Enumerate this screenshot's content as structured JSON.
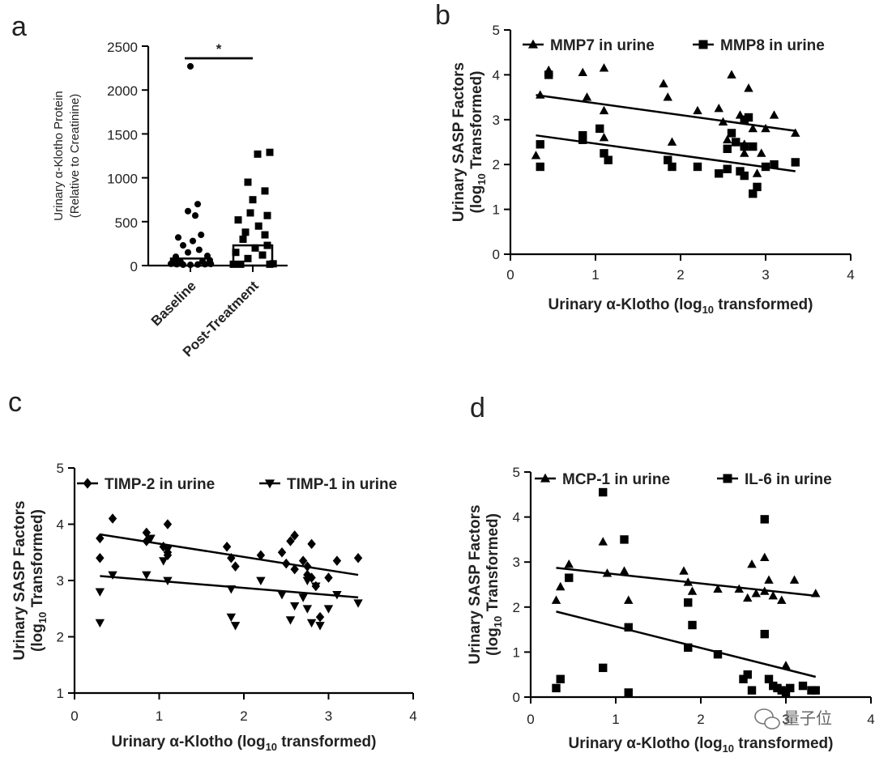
{
  "chart_data": [
    {
      "panel": "a",
      "type": "scatter",
      "ylabel_lines": [
        "Urinary α-Klotho Protein",
        "(Relative to Creatinine)"
      ],
      "ylim": [
        0,
        2500
      ],
      "yticks": [
        0,
        500,
        1000,
        1500,
        2000,
        2500
      ],
      "categories": [
        "Baseline",
        "Post-Treatment"
      ],
      "significance": "*",
      "series": [
        {
          "name": "Baseline",
          "marker": "circle",
          "points": [
            [
              -0.4,
              20
            ],
            [
              -0.28,
              15
            ],
            [
              -0.15,
              10
            ],
            [
              0.0,
              8
            ],
            [
              0.15,
              12
            ],
            [
              0.3,
              15
            ],
            [
              0.42,
              18
            ],
            [
              -0.35,
              45
            ],
            [
              -0.2,
              40
            ],
            [
              0.25,
              50
            ],
            [
              -0.3,
              100
            ],
            [
              0.35,
              110
            ],
            [
              -0.05,
              150
            ],
            [
              0.18,
              180
            ],
            [
              -0.15,
              230
            ],
            [
              0.05,
              280
            ],
            [
              -0.25,
              320
            ],
            [
              0.22,
              350
            ],
            [
              0.1,
              570
            ],
            [
              -0.05,
              620
            ],
            [
              0.15,
              700
            ],
            [
              -0.3,
              80
            ],
            [
              0.4,
              60
            ],
            [
              0.0,
              2270
            ]
          ]
        },
        {
          "name": "Post-Treatment",
          "marker": "square",
          "points": [
            [
              -0.4,
              15
            ],
            [
              -0.25,
              15
            ],
            [
              0.35,
              15
            ],
            [
              0.42,
              20
            ],
            [
              -0.1,
              80
            ],
            [
              0.2,
              120
            ],
            [
              -0.35,
              150
            ],
            [
              0.05,
              200
            ],
            [
              0.3,
              230
            ],
            [
              -0.2,
              300
            ],
            [
              0.25,
              350
            ],
            [
              -0.15,
              380
            ],
            [
              0.12,
              450
            ],
            [
              -0.3,
              520
            ],
            [
              0.3,
              570
            ],
            [
              -0.05,
              600
            ],
            [
              0.0,
              750
            ],
            [
              0.25,
              850
            ],
            [
              -0.1,
              950
            ],
            [
              0.1,
              1270
            ],
            [
              0.35,
              1290
            ]
          ]
        }
      ],
      "bars": [
        {
          "category": "Baseline",
          "value": 80
        },
        {
          "category": "Post-Treatment",
          "value": 230
        }
      ]
    },
    {
      "panel": "b",
      "type": "scatter",
      "xlabel": "Urinary α-Klotho (log",
      "xlabel_sub": "10",
      "xlabel_tail": " transformed)",
      "ylabel_line1": "Urinary SASP Factors",
      "ylabel_line2": "(log",
      "ylabel_line2_sub": "10",
      "ylabel_line2_tail": " Transformed)",
      "xlim": [
        0,
        4
      ],
      "ylim": [
        0,
        5
      ],
      "xticks": [
        0,
        1,
        2,
        3,
        4
      ],
      "yticks": [
        0,
        1,
        2,
        3,
        4,
        5
      ],
      "series": [
        {
          "name": "MMP7 in urine",
          "marker": "triangle",
          "points": [
            [
              0.3,
              2.2
            ],
            [
              0.35,
              3.55
            ],
            [
              0.45,
              4.05
            ],
            [
              0.45,
              4.1
            ],
            [
              0.85,
              4.05
            ],
            [
              0.9,
              3.5
            ],
            [
              1.1,
              4.15
            ],
            [
              1.1,
              3.2
            ],
            [
              1.1,
              2.6
            ],
            [
              1.8,
              3.8
            ],
            [
              1.85,
              3.5
            ],
            [
              1.9,
              2.5
            ],
            [
              2.2,
              3.2
            ],
            [
              2.45,
              3.25
            ],
            [
              2.5,
              2.95
            ],
            [
              2.6,
              4.0
            ],
            [
              2.55,
              2.55
            ],
            [
              2.7,
              3.1
            ],
            [
              2.75,
              2.45
            ],
            [
              2.75,
              2.25
            ],
            [
              2.8,
              3.7
            ],
            [
              2.85,
              2.8
            ],
            [
              2.9,
              1.8
            ],
            [
              2.95,
              2.25
            ],
            [
              3.0,
              2.8
            ],
            [
              3.1,
              3.1
            ],
            [
              3.35,
              2.7
            ]
          ]
        },
        {
          "name": "MMP8 in urine",
          "marker": "square",
          "points": [
            [
              0.35,
              1.95
            ],
            [
              0.35,
              2.45
            ],
            [
              0.45,
              4.0
            ],
            [
              0.85,
              2.65
            ],
            [
              0.85,
              2.55
            ],
            [
              1.05,
              2.8
            ],
            [
              1.1,
              2.25
            ],
            [
              1.15,
              2.1
            ],
            [
              1.85,
              2.1
            ],
            [
              1.9,
              1.95
            ],
            [
              2.2,
              1.95
            ],
            [
              2.45,
              1.8
            ],
            [
              2.55,
              1.9
            ],
            [
              2.55,
              2.35
            ],
            [
              2.6,
              2.7
            ],
            [
              2.65,
              2.5
            ],
            [
              2.7,
              1.85
            ],
            [
              2.75,
              1.75
            ],
            [
              2.75,
              3.0
            ],
            [
              2.75,
              2.4
            ],
            [
              2.8,
              3.05
            ],
            [
              2.85,
              2.4
            ],
            [
              2.85,
              1.35
            ],
            [
              2.9,
              1.5
            ],
            [
              3.0,
              1.95
            ],
            [
              3.1,
              2.0
            ],
            [
              3.35,
              2.05
            ]
          ]
        }
      ],
      "fits": [
        {
          "series": "MMP7 in urine",
          "x": [
            0.3,
            3.35
          ],
          "y": [
            3.55,
            2.75
          ]
        },
        {
          "series": "MMP8 in urine",
          "x": [
            0.3,
            3.35
          ],
          "y": [
            2.65,
            1.85
          ]
        }
      ]
    },
    {
      "panel": "c",
      "type": "scatter",
      "xlabel": "Urinary α-Klotho (log",
      "xlabel_sub": "10",
      "xlabel_tail": " transformed)",
      "ylabel_line1": "Urinary SASP Factors",
      "ylabel_line2": "(log",
      "ylabel_line2_sub": "10",
      "ylabel_line2_tail": " Transformed)",
      "xlim": [
        0,
        4
      ],
      "ylim": [
        1,
        5
      ],
      "xticks": [
        0,
        1,
        2,
        3,
        4
      ],
      "yticks": [
        1,
        2,
        3,
        4,
        5
      ],
      "series": [
        {
          "name": "TIMP-2 in urine",
          "marker": "diamond",
          "points": [
            [
              0.3,
              3.4
            ],
            [
              0.3,
              3.75
            ],
            [
              0.45,
              4.1
            ],
            [
              0.85,
              3.85
            ],
            [
              0.85,
              3.7
            ],
            [
              1.05,
              3.6
            ],
            [
              1.1,
              4.0
            ],
            [
              1.1,
              3.5
            ],
            [
              1.1,
              3.45
            ],
            [
              1.8,
              3.6
            ],
            [
              1.85,
              3.4
            ],
            [
              1.9,
              3.25
            ],
            [
              2.2,
              3.45
            ],
            [
              2.45,
              3.5
            ],
            [
              2.5,
              3.3
            ],
            [
              2.55,
              3.7
            ],
            [
              2.6,
              3.8
            ],
            [
              2.6,
              3.2
            ],
            [
              2.7,
              3.35
            ],
            [
              2.75,
              3.25
            ],
            [
              2.75,
              3.1
            ],
            [
              2.8,
              3.05
            ],
            [
              2.8,
              3.65
            ],
            [
              2.85,
              2.9
            ],
            [
              2.9,
              2.35
            ],
            [
              3.0,
              3.05
            ],
            [
              3.1,
              3.35
            ],
            [
              3.35,
              3.4
            ]
          ]
        },
        {
          "name": "TIMP-1 in urine",
          "marker": "triangle-down",
          "points": [
            [
              0.3,
              2.25
            ],
            [
              0.3,
              2.8
            ],
            [
              0.45,
              3.1
            ],
            [
              0.85,
              3.1
            ],
            [
              0.9,
              3.75
            ],
            [
              1.05,
              3.35
            ],
            [
              1.1,
              3.0
            ],
            [
              1.1,
              3.55
            ],
            [
              1.85,
              2.85
            ],
            [
              1.85,
              2.35
            ],
            [
              1.9,
              2.2
            ],
            [
              2.2,
              3.0
            ],
            [
              2.45,
              2.75
            ],
            [
              2.55,
              2.3
            ],
            [
              2.6,
              2.55
            ],
            [
              2.7,
              2.7
            ],
            [
              2.75,
              2.5
            ],
            [
              2.75,
              3.0
            ],
            [
              2.8,
              2.25
            ],
            [
              2.85,
              2.9
            ],
            [
              2.9,
              2.2
            ],
            [
              3.0,
              2.5
            ],
            [
              3.1,
              2.75
            ],
            [
              3.35,
              2.6
            ]
          ]
        }
      ],
      "fits": [
        {
          "series": "TIMP-2 in urine",
          "x": [
            0.3,
            3.35
          ],
          "y": [
            3.82,
            3.1
          ]
        },
        {
          "series": "TIMP-1 in urine",
          "x": [
            0.3,
            3.35
          ],
          "y": [
            3.08,
            2.7
          ]
        }
      ]
    },
    {
      "panel": "d",
      "type": "scatter",
      "xlabel": "Urinary α-Klotho (log",
      "xlabel_sub": "10",
      "xlabel_tail": " transformed)",
      "ylabel_line1": "Urinary SASP Factors",
      "ylabel_line2": "(log",
      "ylabel_line2_sub": "10",
      "ylabel_line2_tail": " Transformed)",
      "xlim": [
        0,
        4
      ],
      "ylim": [
        0,
        5
      ],
      "xticks": [
        0,
        1,
        2,
        3,
        4
      ],
      "yticks": [
        0,
        1,
        2,
        3,
        4,
        5
      ],
      "series": [
        {
          "name": "MCP-1 in urine",
          "marker": "triangle",
          "points": [
            [
              0.3,
              2.15
            ],
            [
              0.35,
              2.45
            ],
            [
              0.45,
              2.95
            ],
            [
              0.85,
              3.45
            ],
            [
              0.9,
              2.75
            ],
            [
              1.1,
              2.8
            ],
            [
              1.15,
              2.15
            ],
            [
              1.8,
              2.8
            ],
            [
              1.85,
              2.55
            ],
            [
              1.9,
              2.35
            ],
            [
              2.2,
              2.4
            ],
            [
              2.45,
              2.4
            ],
            [
              2.55,
              2.2
            ],
            [
              2.6,
              2.95
            ],
            [
              2.65,
              2.3
            ],
            [
              2.75,
              3.1
            ],
            [
              2.75,
              2.35
            ],
            [
              2.8,
              2.6
            ],
            [
              2.85,
              2.25
            ],
            [
              2.95,
              2.15
            ],
            [
              3.1,
              2.6
            ],
            [
              3.35,
              2.3
            ],
            [
              3.0,
              0.7
            ]
          ]
        },
        {
          "name": "IL-6 in urine",
          "marker": "square",
          "points": [
            [
              0.3,
              0.2
            ],
            [
              0.35,
              0.4
            ],
            [
              0.45,
              2.65
            ],
            [
              0.85,
              4.55
            ],
            [
              0.85,
              0.65
            ],
            [
              1.1,
              3.5
            ],
            [
              1.15,
              1.55
            ],
            [
              1.15,
              0.1
            ],
            [
              1.85,
              1.1
            ],
            [
              1.85,
              2.1
            ],
            [
              1.9,
              1.6
            ],
            [
              2.2,
              0.95
            ],
            [
              2.5,
              0.4
            ],
            [
              2.55,
              0.5
            ],
            [
              2.6,
              0.15
            ],
            [
              2.75,
              3.95
            ],
            [
              2.75,
              1.4
            ],
            [
              2.8,
              0.4
            ],
            [
              2.85,
              0.25
            ],
            [
              2.9,
              0.2
            ],
            [
              2.95,
              0.15
            ],
            [
              3.0,
              0.1
            ],
            [
              3.05,
              0.2
            ],
            [
              3.2,
              0.25
            ],
            [
              3.3,
              0.15
            ],
            [
              3.35,
              0.15
            ]
          ]
        }
      ],
      "fits": [
        {
          "series": "MCP-1 in urine",
          "x": [
            0.3,
            3.35
          ],
          "y": [
            2.87,
            2.25
          ]
        },
        {
          "series": "IL-6 in urine",
          "x": [
            0.3,
            3.35
          ],
          "y": [
            1.9,
            0.45
          ]
        }
      ]
    }
  ],
  "watermark": "量子位"
}
